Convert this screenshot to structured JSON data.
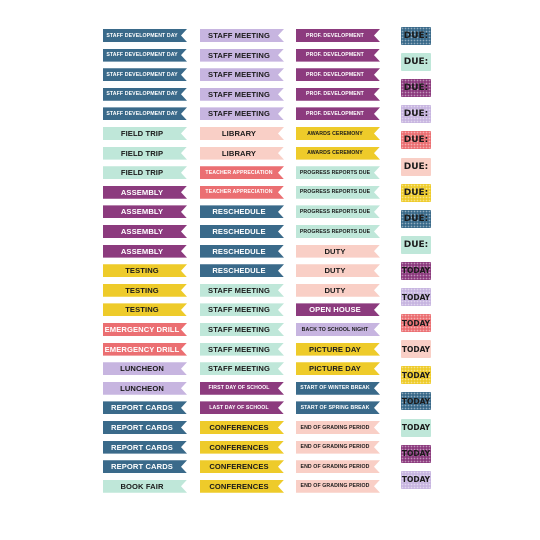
{
  "colors": {
    "navy": "#3a6a8a",
    "lavender": "#c7b5e0",
    "plum": "#8c3b7e",
    "mint": "#bfe7d9",
    "peach": "#f9cfc6",
    "mustard": "#eecb2a",
    "coral": "#eb6f72",
    "white_text": "#ffffff",
    "dark_text": "#1b1b1b"
  },
  "columns": [
    {
      "rows": [
        {
          "label": "STAFF DEVELOPMENT DAY",
          "color": "navy",
          "size": "small"
        },
        {
          "label": "STAFF DEVELOPMENT DAY",
          "color": "navy",
          "size": "small"
        },
        {
          "label": "STAFF DEVELOPMENT DAY",
          "color": "navy",
          "size": "small"
        },
        {
          "label": "STAFF DEVELOPMENT DAY",
          "color": "navy",
          "size": "small"
        },
        {
          "label": "STAFF DEVELOPMENT DAY",
          "color": "navy",
          "size": "small"
        },
        {
          "label": "FIELD TRIP",
          "color": "mint"
        },
        {
          "label": "FIELD TRIP",
          "color": "mint"
        },
        {
          "label": "FIELD TRIP",
          "color": "mint"
        },
        {
          "label": "ASSEMBLY",
          "color": "plum"
        },
        {
          "label": "ASSEMBLY",
          "color": "plum"
        },
        {
          "label": "ASSEMBLY",
          "color": "plum"
        },
        {
          "label": "ASSEMBLY",
          "color": "plum"
        },
        {
          "label": "TESTING",
          "color": "mustard"
        },
        {
          "label": "TESTING",
          "color": "mustard"
        },
        {
          "label": "TESTING",
          "color": "mustard"
        },
        {
          "label": "EMERGENCY DRILL",
          "color": "coral"
        },
        {
          "label": "EMERGENCY DRILL",
          "color": "coral"
        },
        {
          "label": "LUNCHEON",
          "color": "lavender"
        },
        {
          "label": "LUNCHEON",
          "color": "lavender"
        },
        {
          "label": "REPORT CARDS",
          "color": "navy"
        },
        {
          "label": "REPORT CARDS",
          "color": "navy"
        },
        {
          "label": "REPORT CARDS",
          "color": "navy"
        },
        {
          "label": "REPORT CARDS",
          "color": "navy"
        },
        {
          "label": "BOOK FAIR",
          "color": "mint"
        }
      ]
    },
    {
      "rows": [
        {
          "label": "STAFF MEETING",
          "color": "lavender"
        },
        {
          "label": "STAFF MEETING",
          "color": "lavender"
        },
        {
          "label": "STAFF MEETING",
          "color": "lavender"
        },
        {
          "label": "STAFF MEETING",
          "color": "lavender"
        },
        {
          "label": "STAFF MEETING",
          "color": "lavender"
        },
        {
          "label": "LIBRARY",
          "color": "peach"
        },
        {
          "label": "LIBRARY",
          "color": "peach"
        },
        {
          "label": "TEACHER APPRECIATION",
          "color": "coral",
          "size": "small"
        },
        {
          "label": "TEACHER APPRECIATION",
          "color": "coral",
          "size": "small"
        },
        {
          "label": "RESCHEDULE",
          "color": "navy"
        },
        {
          "label": "RESCHEDULE",
          "color": "navy"
        },
        {
          "label": "RESCHEDULE",
          "color": "navy"
        },
        {
          "label": "RESCHEDULE",
          "color": "navy"
        },
        {
          "label": "STAFF MEETING",
          "color": "mint"
        },
        {
          "label": "STAFF MEETING",
          "color": "mint"
        },
        {
          "label": "STAFF MEETING",
          "color": "mint"
        },
        {
          "label": "STAFF MEETING",
          "color": "mint"
        },
        {
          "label": "STAFF MEETING",
          "color": "mint"
        },
        {
          "label": "FIRST DAY OF SCHOOL",
          "color": "plum",
          "size": "small"
        },
        {
          "label": "LAST DAY OF SCHOOL",
          "color": "plum",
          "size": "small"
        },
        {
          "label": "CONFERENCES",
          "color": "mustard"
        },
        {
          "label": "CONFERENCES",
          "color": "mustard"
        },
        {
          "label": "CONFERENCES",
          "color": "mustard"
        },
        {
          "label": "CONFERENCES",
          "color": "mustard"
        }
      ]
    },
    {
      "rows": [
        {
          "label": "PROF. DEVELOPMENT",
          "color": "plum",
          "size": "small"
        },
        {
          "label": "PROF. DEVELOPMENT",
          "color": "plum",
          "size": "small"
        },
        {
          "label": "PROF. DEVELOPMENT",
          "color": "plum",
          "size": "small"
        },
        {
          "label": "PROF. DEVELOPMENT",
          "color": "plum",
          "size": "small"
        },
        {
          "label": "PROF. DEVELOPMENT",
          "color": "plum",
          "size": "small"
        },
        {
          "label": "AWARDS CEREMONY",
          "color": "mustard",
          "size": "small"
        },
        {
          "label": "AWARDS CEREMONY",
          "color": "mustard",
          "size": "small"
        },
        {
          "label": "PROGRESS REPORTS DUE",
          "color": "mint",
          "size": "small"
        },
        {
          "label": "PROGRESS REPORTS DUE",
          "color": "mint",
          "size": "small"
        },
        {
          "label": "PROGRESS REPORTS DUE",
          "color": "mint",
          "size": "small"
        },
        {
          "label": "PROGRESS REPORTS DUE",
          "color": "mint",
          "size": "small"
        },
        {
          "label": "DUTY",
          "color": "peach"
        },
        {
          "label": "DUTY",
          "color": "peach"
        },
        {
          "label": "DUTY",
          "color": "peach"
        },
        {
          "label": "OPEN HOUSE",
          "color": "plum"
        },
        {
          "label": "BACK TO SCHOOL NIGHT",
          "color": "lavender",
          "size": "small"
        },
        {
          "label": "PICTURE DAY",
          "color": "mustard"
        },
        {
          "label": "PICTURE DAY",
          "color": "mustard"
        },
        {
          "label": "START OF WINTER BREAK",
          "color": "navy",
          "size": "small"
        },
        {
          "label": "START OF SPRING BREAK",
          "color": "navy",
          "size": "small"
        },
        {
          "label": "END OF GRADING PERIOD",
          "color": "peach",
          "size": "small"
        },
        {
          "label": "END OF GRADING PERIOD",
          "color": "peach",
          "size": "small"
        },
        {
          "label": "END OF GRADING PERIOD",
          "color": "peach",
          "size": "small"
        },
        {
          "label": "END OF GRADING PERIOD",
          "color": "peach",
          "size": "small"
        }
      ]
    }
  ],
  "badges": [
    {
      "label": "DUE:",
      "color": "navy",
      "dots": true
    },
    {
      "label": "DUE:",
      "color": "mint"
    },
    {
      "label": "DUE:",
      "color": "plum",
      "dots": true
    },
    {
      "label": "DUE:",
      "color": "lavender",
      "dots": true
    },
    {
      "label": "DUE:",
      "color": "coral",
      "dots": true
    },
    {
      "label": "DUE:",
      "color": "peach"
    },
    {
      "label": "DUE:",
      "color": "mustard",
      "dots": true
    },
    {
      "label": "DUE:",
      "color": "navy",
      "dots": true
    },
    {
      "label": "DUE:",
      "color": "mint"
    },
    {
      "label": "TODAY",
      "color": "plum",
      "dots": true
    },
    {
      "label": "TODAY",
      "color": "lavender",
      "dots": true
    },
    {
      "label": "TODAY",
      "color": "coral",
      "dots": true
    },
    {
      "label": "TODAY",
      "color": "peach"
    },
    {
      "label": "TODAY",
      "color": "mustard",
      "dots": true
    },
    {
      "label": "TODAY",
      "color": "navy",
      "dots": true
    },
    {
      "label": "TODAY",
      "color": "mint"
    },
    {
      "label": "TODAY",
      "color": "plum",
      "dots": true
    },
    {
      "label": "TODAY",
      "color": "lavender",
      "dots": true
    }
  ]
}
